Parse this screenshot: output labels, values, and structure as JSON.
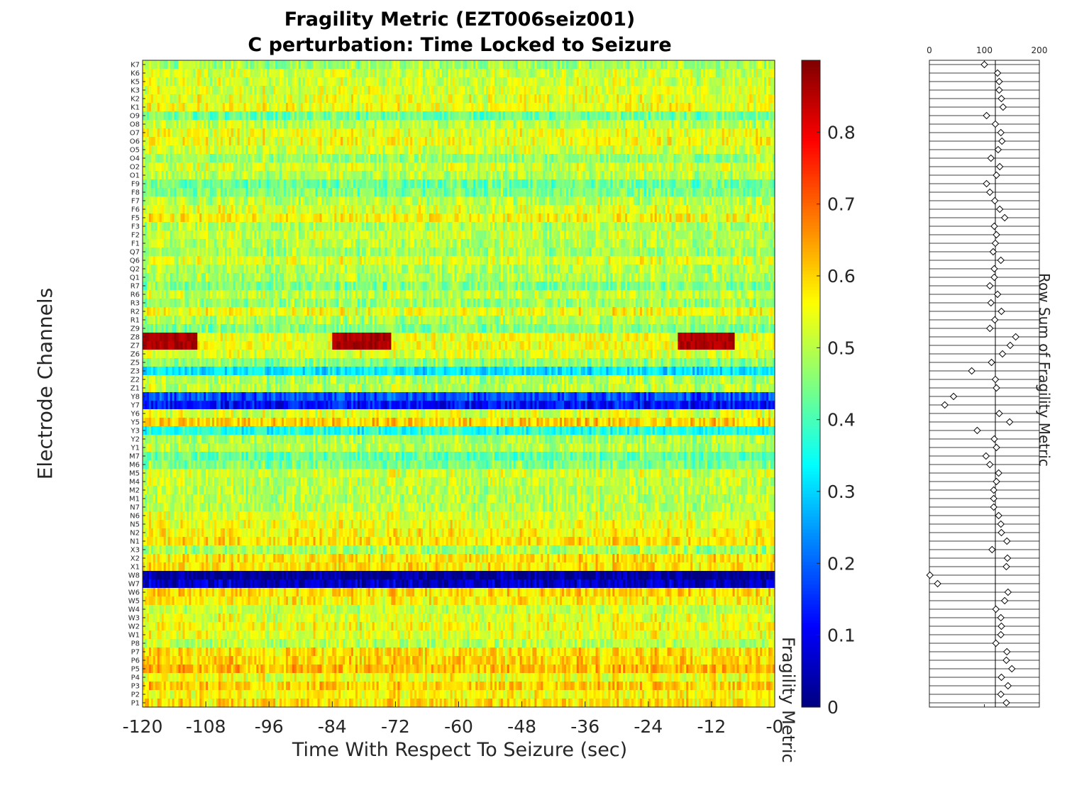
{
  "chart_data": [
    {
      "type": "heatmap",
      "title": "Fragility Metric (EZT006seiz001)",
      "subtitle": "C perturbation:  Time Locked to Seizure",
      "xlabel": "Time With Respect To Seizure (sec)",
      "ylabel": "Electrode Channels",
      "xlim": [
        -120,
        0
      ],
      "xticks": [
        "-120",
        "-108",
        "-96",
        "-84",
        "-72",
        "-60",
        "-48",
        "-36",
        "-24",
        "-12",
        "-0"
      ],
      "channels": [
        "K7",
        "K6",
        "K5",
        "K3",
        "K2",
        "K1",
        "O9",
        "O8",
        "O7",
        "O6",
        "O5",
        "O4",
        "O2",
        "O1",
        "F9",
        "F8",
        "F7",
        "F6",
        "F5",
        "F3",
        "F2",
        "F1",
        "Q7",
        "Q6",
        "Q2",
        "Q1",
        "R7",
        "R6",
        "R3",
        "R2",
        "R1",
        "Z9",
        "Z8",
        "Z7",
        "Z6",
        "Z5",
        "Z3",
        "Z2",
        "Z1",
        "Y8",
        "Y7",
        "Y6",
        "Y5",
        "Y3",
        "Y2",
        "Y1",
        "M7",
        "M6",
        "M5",
        "M4",
        "M2",
        "M1",
        "N7",
        "N6",
        "N5",
        "N2",
        "N1",
        "X3",
        "X2",
        "X1",
        "W8",
        "W7",
        "W6",
        "W5",
        "W4",
        "W3",
        "W2",
        "W1",
        "P8",
        "P7",
        "P6",
        "P5",
        "P4",
        "P3",
        "P2",
        "P1"
      ],
      "row_mean_values": [
        0.48,
        0.52,
        0.52,
        0.53,
        0.54,
        0.55,
        0.43,
        0.5,
        0.54,
        0.55,
        0.52,
        0.47,
        0.52,
        0.5,
        0.43,
        0.45,
        0.5,
        0.53,
        0.56,
        0.49,
        0.51,
        0.5,
        0.48,
        0.53,
        0.49,
        0.49,
        0.45,
        0.51,
        0.47,
        0.55,
        0.49,
        0.45,
        0.8,
        0.75,
        0.53,
        0.46,
        0.32,
        0.49,
        0.5,
        0.18,
        0.12,
        0.53,
        0.6,
        0.36,
        0.49,
        0.5,
        0.42,
        0.45,
        0.52,
        0.51,
        0.5,
        0.5,
        0.5,
        0.53,
        0.55,
        0.56,
        0.58,
        0.48,
        0.58,
        0.58,
        0.02,
        0.06,
        0.59,
        0.57,
        0.51,
        0.54,
        0.55,
        0.54,
        0.5,
        0.59,
        0.6,
        0.62,
        0.55,
        0.6,
        0.56,
        0.59
      ],
      "hot_segments": {
        "channels": [
          "Z8",
          "Z7"
        ],
        "times": [
          [
            -120,
            -109.5
          ],
          [
            -84,
            -73
          ],
          [
            -18.5,
            -7.5
          ]
        ]
      },
      "colorbar": {
        "label": "Fragility Metric",
        "range": [
          0,
          0.9
        ],
        "ticks": [
          "0",
          "0.1",
          "0.2",
          "0.3",
          "0.4",
          "0.5",
          "0.6",
          "0.7",
          "0.8"
        ],
        "colormap": "jet"
      }
    },
    {
      "type": "stem",
      "xlabel": "Row Sum of Fragility Metric",
      "xlim": [
        0,
        200
      ],
      "xticks": [
        "0",
        "100",
        "200"
      ],
      "baseline": 120,
      "values": [
        100,
        124,
        127,
        127,
        131,
        134,
        104,
        120,
        130,
        132,
        125,
        112,
        128,
        122,
        104,
        110,
        119,
        128,
        137,
        118,
        122,
        120,
        116,
        130,
        118,
        118,
        110,
        124,
        112,
        131,
        119,
        110,
        157,
        147,
        133,
        113,
        77,
        120,
        122,
        44,
        28,
        127,
        146,
        87,
        118,
        122,
        103,
        110,
        126,
        122,
        117,
        117,
        117,
        126,
        130,
        131,
        141,
        114,
        142,
        140,
        1,
        15,
        143,
        137,
        121,
        130,
        131,
        130,
        121,
        141,
        140,
        150,
        131,
        143,
        130,
        140
      ]
    }
  ],
  "colors": {
    "background": "#ffffff",
    "axis": "#262626",
    "stem": "#000000"
  }
}
